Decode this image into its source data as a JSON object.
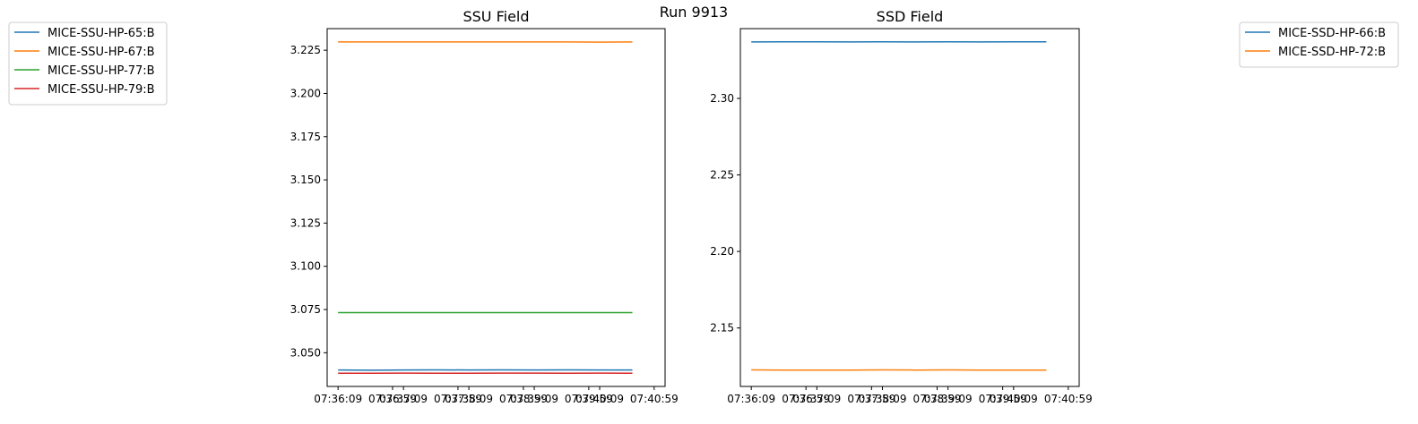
{
  "suptitle": "Run 9913",
  "chart_data": [
    {
      "type": "line",
      "title": "SSU Field",
      "xlabel": "",
      "ylabel": "",
      "x_ticks": [
        "07:36:09",
        "07:36:59",
        "07:37:09",
        "07:37:59",
        "07:38:09",
        "07:38:59",
        "07:39:09",
        "07:39:59",
        "07:40:09",
        "07:40:59"
      ],
      "x_tick_values_seconds": [
        0,
        50,
        60,
        110,
        120,
        170,
        180,
        230,
        240,
        290
      ],
      "xlim_seconds": [
        -10,
        300
      ],
      "ylim": [
        3.0305,
        3.2375
      ],
      "y_ticks": [
        "3.050",
        "3.075",
        "3.100",
        "3.125",
        "3.150",
        "3.175",
        "3.200",
        "3.225"
      ],
      "legend_position": "outside-upper-left",
      "x_seconds": [
        0,
        30,
        60,
        90,
        120,
        150,
        180,
        210,
        240,
        270
      ],
      "series": [
        {
          "name": "MICE-SSU-HP-65:B",
          "color": "#1f77b4",
          "values": [
            3.04,
            3.0399,
            3.04,
            3.0401,
            3.04,
            3.0401,
            3.04,
            3.0401,
            3.04,
            3.04
          ]
        },
        {
          "name": "MICE-SSU-HP-67:B",
          "color": "#ff7f0e",
          "values": [
            3.2298,
            3.2298,
            3.2298,
            3.2298,
            3.2298,
            3.2298,
            3.2298,
            3.2298,
            3.2297,
            3.2298
          ]
        },
        {
          "name": "MICE-SSU-HP-77:B",
          "color": "#2ca02c",
          "values": [
            3.0732,
            3.0732,
            3.0732,
            3.0732,
            3.0732,
            3.0732,
            3.0732,
            3.0732,
            3.0732,
            3.0732
          ]
        },
        {
          "name": "MICE-SSU-HP-79:B",
          "color": "#d62728",
          "values": [
            3.0381,
            3.0381,
            3.0382,
            3.0381,
            3.0381,
            3.0382,
            3.0382,
            3.0381,
            3.0382,
            3.0381
          ]
        }
      ]
    },
    {
      "type": "line",
      "title": "SSD Field",
      "xlabel": "",
      "ylabel": "",
      "x_ticks": [
        "07:36:09",
        "07:36:59",
        "07:37:09",
        "07:37:59",
        "07:38:09",
        "07:38:59",
        "07:39:09",
        "07:39:59",
        "07:40:09",
        "07:40:59"
      ],
      "x_tick_values_seconds": [
        0,
        50,
        60,
        110,
        120,
        170,
        180,
        230,
        240,
        290
      ],
      "xlim_seconds": [
        -10,
        300
      ],
      "ylim": [
        2.1118,
        2.3456
      ],
      "y_ticks": [
        "2.15",
        "2.20",
        "2.25",
        "2.30"
      ],
      "legend_position": "outside-upper-right",
      "x_seconds": [
        0,
        30,
        60,
        90,
        120,
        150,
        180,
        210,
        240,
        270
      ],
      "series": [
        {
          "name": "MICE-SSD-HP-66:B",
          "color": "#1f77b4",
          "values": [
            2.3369,
            2.337,
            2.337,
            2.3369,
            2.337,
            2.3369,
            2.337,
            2.3369,
            2.337,
            2.337
          ]
        },
        {
          "name": "MICE-SSD-HP-72:B",
          "color": "#ff7f0e",
          "values": [
            2.1226,
            2.1225,
            2.1225,
            2.1225,
            2.1226,
            2.1225,
            2.1226,
            2.1225,
            2.1225,
            2.1225
          ]
        }
      ]
    }
  ]
}
